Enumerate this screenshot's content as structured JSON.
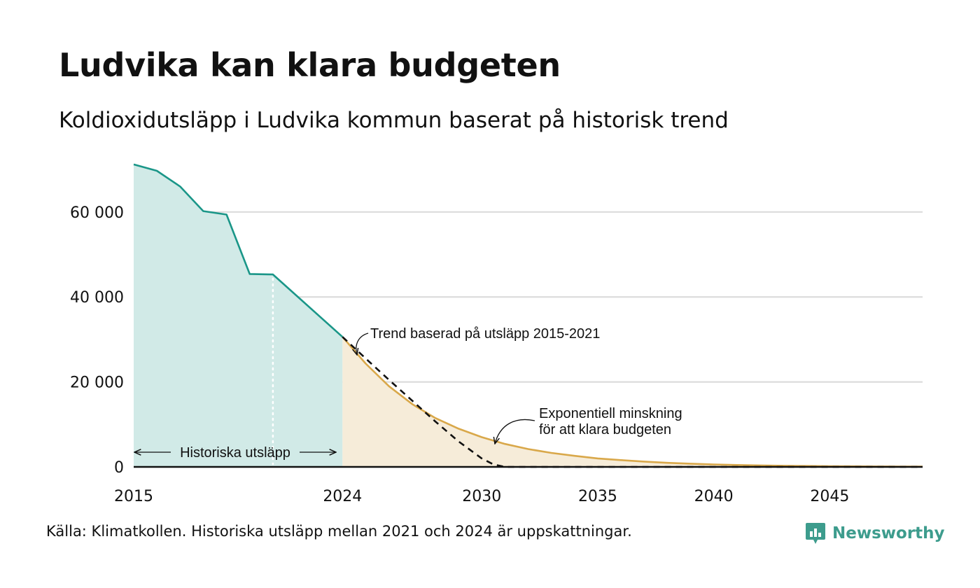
{
  "header": {
    "title": "Ludvika kan klara budgeten",
    "subtitle": "Koldioxidutsläpp i Ludvika kommun baserat på historisk trend"
  },
  "footer": {
    "source": "Källa: Klimatkollen. Historiska utsläpp mellan 2021 och 2024 är uppskattningar.",
    "brand": "Newsworthy"
  },
  "colors": {
    "historical_line": "#1a9688",
    "historical_fill": "#d1eae7",
    "exponential_line": "#d9a84a",
    "exponential_fill": "#f6ecd9",
    "trend_line": "#111111",
    "grid": "#dcdcdc",
    "brand": "#3d9c8d"
  },
  "chart_data": {
    "type": "area",
    "title": "Ludvika kan klara budgeten",
    "subtitle": "Koldioxidutsläpp i Ludvika kommun baserat på historisk trend",
    "xlabel": "",
    "ylabel": "",
    "xlim": [
      2015,
      2049
    ],
    "ylim": [
      0,
      72000
    ],
    "x_ticks": [
      2015,
      2024,
      2030,
      2035,
      2040,
      2045
    ],
    "y_ticks": [
      0,
      20000,
      40000,
      60000
    ],
    "x_tick_labels": [
      "2015",
      "2024",
      "2030",
      "2035",
      "2040",
      "2045"
    ],
    "y_tick_labels": [
      "0",
      "20 000",
      "40 000",
      "60 000"
    ],
    "grid": "horizontal",
    "series": [
      {
        "style": "solid-area",
        "x": [
          2015,
          2016,
          2017,
          2018,
          2019,
          2020,
          2021,
          2024
        ],
        "values": [
          71200,
          69700,
          66000,
          60200,
          59400,
          45400,
          45300,
          30600
        ]
      },
      {
        "style": "solid-area",
        "x": [
          2024,
          2025,
          2026,
          2027,
          2028,
          2029,
          2030,
          2031,
          2032,
          2033,
          2034,
          2035,
          2036,
          2037,
          2038,
          2039,
          2040,
          2041,
          2042,
          2043,
          2044,
          2045,
          2046,
          2047,
          2048,
          2049
        ],
        "values": [
          30600,
          24300,
          19000,
          14800,
          11500,
          9000,
          7000,
          5400,
          4200,
          3300,
          2600,
          2000,
          1600,
          1250,
          950,
          750,
          580,
          450,
          350,
          270,
          210,
          160,
          125,
          100,
          80,
          60
        ]
      },
      {
        "style": "dashed",
        "x": [
          2024,
          2025,
          2026,
          2027,
          2028,
          2029,
          2030,
          2030.5,
          2031,
          2049
        ],
        "values": [
          30600,
          25500,
          20500,
          15600,
          10700,
          6000,
          2000,
          600,
          0,
          0
        ]
      }
    ],
    "annotations": [
      {
        "text": "Trend baserad på utsläpp 2015-2021"
      },
      {
        "text": "Exponentiell minskning\nför att klara budgeten"
      },
      {
        "text": "Historiska utsläpp"
      }
    ]
  }
}
